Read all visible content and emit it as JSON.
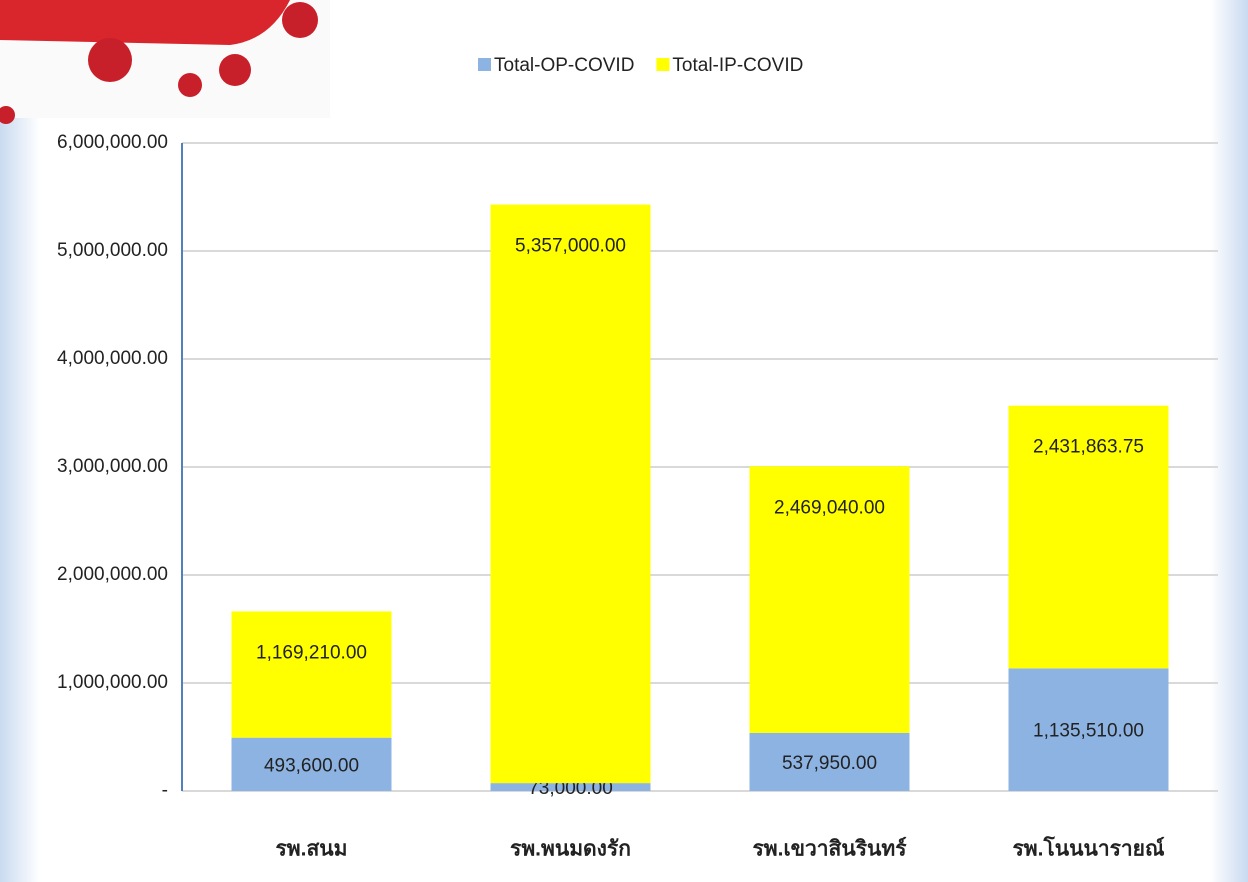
{
  "chart_data": {
    "type": "stacked_bar",
    "categories": [
      "รพ.สนม",
      "รพ.พนมดงรัก",
      "รพ.เขวาสินรินทร์",
      "รพ.โนนนารายณ์"
    ],
    "series": [
      {
        "name": "Total-OP-COVID",
        "color": "#8db3e2",
        "values": [
          493600,
          73000,
          537950,
          1135510
        ],
        "value_labels": [
          "493,600.00",
          "73,000.00",
          "537,950.00",
          "1,135,510.00"
        ]
      },
      {
        "name": "Total-IP-COVID",
        "color": "#ffff00",
        "values": [
          1169210,
          5357000,
          2469040,
          2431863.75
        ],
        "value_labels": [
          "1,169,210.00",
          "5,357,000.00",
          "2,469,040.00",
          "2,431,863.75"
        ]
      }
    ],
    "ylim": [
      0,
      6000000
    ],
    "yticks": [
      {
        "value": 0,
        "label": "-"
      },
      {
        "value": 1000000,
        "label": "1,000,000.00"
      },
      {
        "value": 2000000,
        "label": "2,000,000.00"
      },
      {
        "value": 3000000,
        "label": "3,000,000.00"
      },
      {
        "value": 4000000,
        "label": "4,000,000.00"
      },
      {
        "value": 5000000,
        "label": "5,000,000.00"
      },
      {
        "value": 6000000,
        "label": "6,000,000.00"
      }
    ],
    "grid": true,
    "legend": "top"
  }
}
